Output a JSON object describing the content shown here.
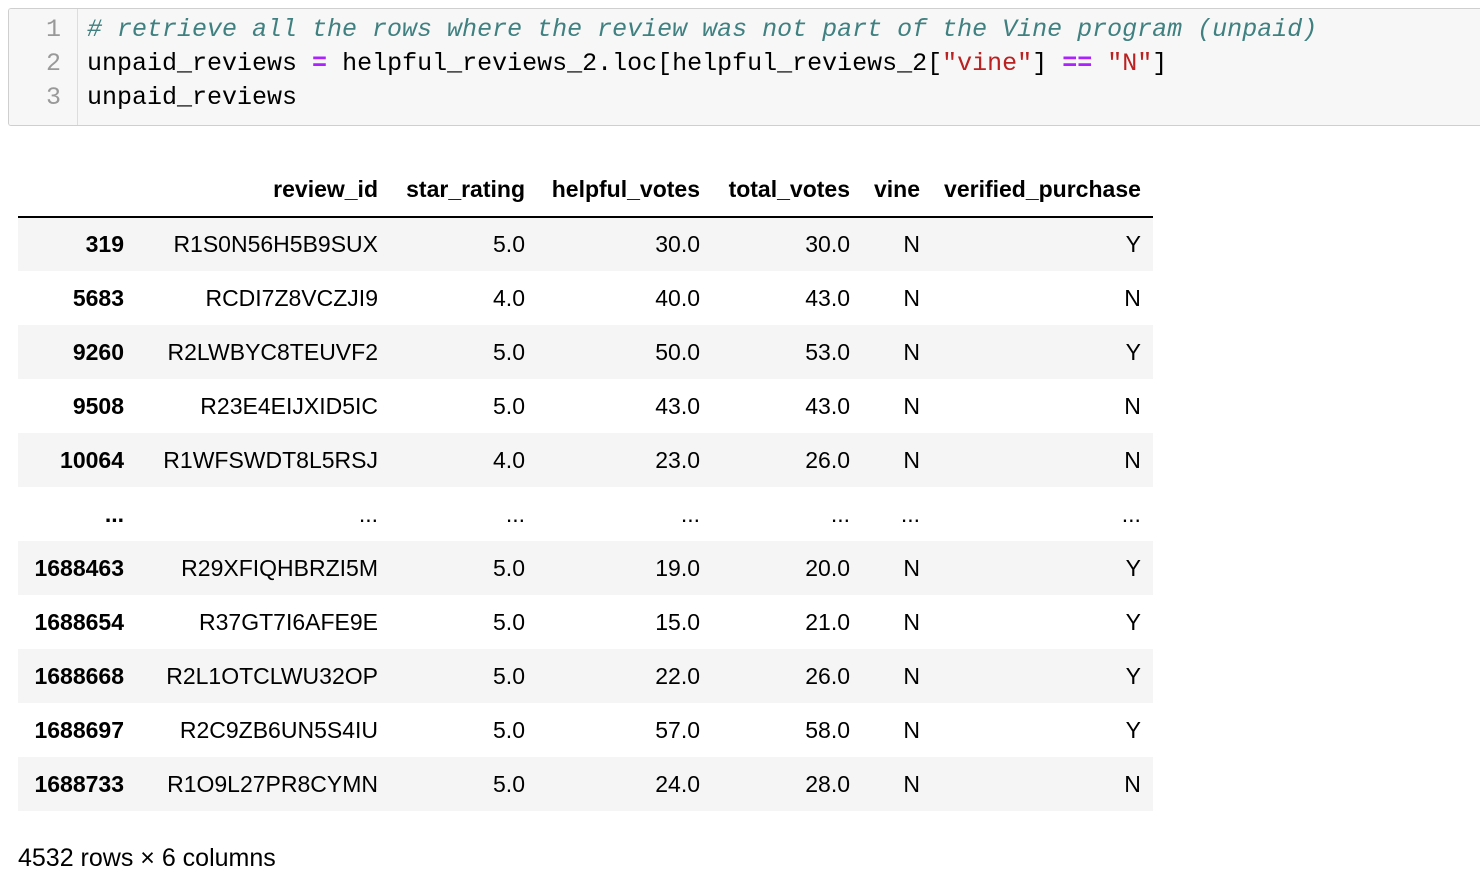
{
  "code_cell": {
    "line_numbers": [
      "1",
      "2",
      "3"
    ],
    "line1": {
      "comment": "# retrieve all the rows where the review was not part of the Vine program (unpaid)"
    },
    "line2": {
      "part1": "unpaid_reviews ",
      "op1": "=",
      "part2": " helpful_reviews_2.loc[helpful_reviews_2[",
      "str1": "\"vine\"",
      "part3": "] ",
      "op2": "==",
      "part4": " ",
      "str2": "\"N\"",
      "part5": "]"
    },
    "line3": {
      "text": "unpaid_reviews"
    }
  },
  "table": {
    "columns": [
      "review_id",
      "star_rating",
      "helpful_votes",
      "total_votes",
      "vine",
      "verified_purchase"
    ],
    "rows": [
      {
        "index": "319",
        "cells": [
          "R1S0N56H5B9SUX",
          "5.0",
          "30.0",
          "30.0",
          "N",
          "Y"
        ]
      },
      {
        "index": "5683",
        "cells": [
          "RCDI7Z8VCZJI9",
          "4.0",
          "40.0",
          "43.0",
          "N",
          "N"
        ]
      },
      {
        "index": "9260",
        "cells": [
          "R2LWBYC8TEUVF2",
          "5.0",
          "50.0",
          "53.0",
          "N",
          "Y"
        ]
      },
      {
        "index": "9508",
        "cells": [
          "R23E4EIJXID5IC",
          "5.0",
          "43.0",
          "43.0",
          "N",
          "N"
        ]
      },
      {
        "index": "10064",
        "cells": [
          "R1WFSWDT8L5RSJ",
          "4.0",
          "23.0",
          "26.0",
          "N",
          "N"
        ]
      },
      {
        "index": "...",
        "cells": [
          "...",
          "...",
          "...",
          "...",
          "...",
          "..."
        ]
      },
      {
        "index": "1688463",
        "cells": [
          "R29XFIQHBRZI5M",
          "5.0",
          "19.0",
          "20.0",
          "N",
          "Y"
        ]
      },
      {
        "index": "1688654",
        "cells": [
          "R37GT7I6AFE9E",
          "5.0",
          "15.0",
          "21.0",
          "N",
          "Y"
        ]
      },
      {
        "index": "1688668",
        "cells": [
          "R2L1OTCLWU32OP",
          "5.0",
          "22.0",
          "26.0",
          "N",
          "Y"
        ]
      },
      {
        "index": "1688697",
        "cells": [
          "R2C9ZB6UN5S4IU",
          "5.0",
          "57.0",
          "58.0",
          "N",
          "Y"
        ]
      },
      {
        "index": "1688733",
        "cells": [
          "R1O9L27PR8CYMN",
          "5.0",
          "24.0",
          "28.0",
          "N",
          "N"
        ]
      }
    ]
  },
  "summary": "4532 rows × 6 columns",
  "colors": {
    "comment": "#408080",
    "operator": "#aa22ff",
    "string": "#ba2121",
    "cell_background": "#f7f7f7",
    "stripe": "#f5f5f5"
  }
}
